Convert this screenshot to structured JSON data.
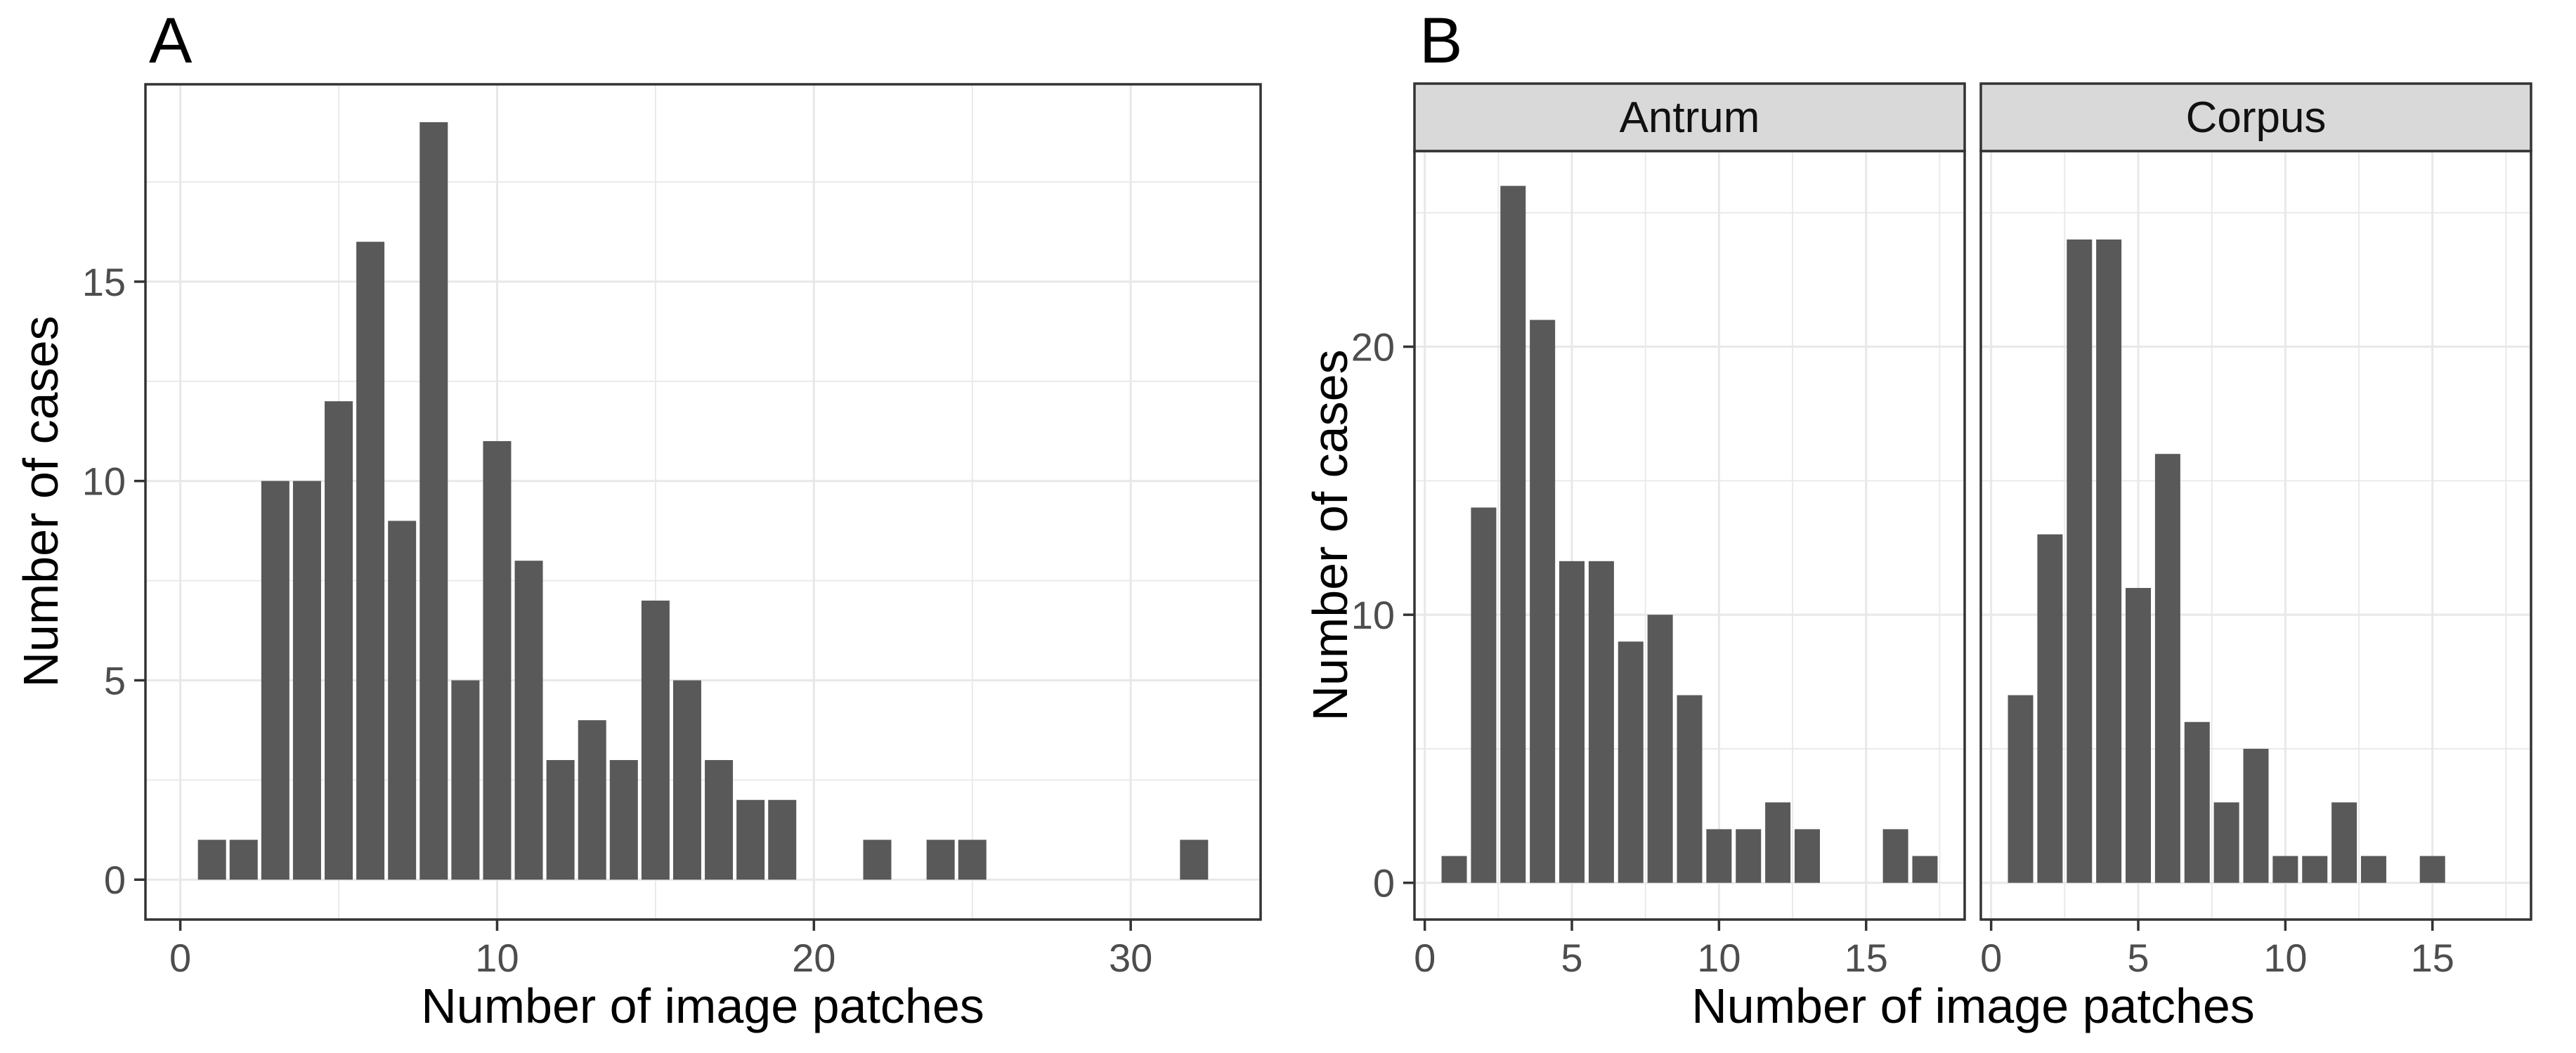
{
  "figure": {
    "panels": {
      "a_tag": "A",
      "b_tag": "B"
    },
    "facets": [
      "Antrum",
      "Corpus"
    ],
    "colors": {
      "bar": "#595959",
      "grid": "#e8e8e8",
      "panel_border": "#333333",
      "strip_fill": "#d9d9d9",
      "axis_text": "#4d4d4d",
      "tick": "#333333",
      "title_text": "#000000",
      "background": "#ffffff"
    }
  },
  "chart_data": [
    {
      "type": "bar",
      "panel": "A",
      "title": "",
      "xlabel": "Number of image patches",
      "ylabel": "Number of cases",
      "x": [
        1,
        2,
        3,
        4,
        5,
        6,
        7,
        8,
        9,
        10,
        11,
        12,
        13,
        14,
        15,
        16,
        17,
        18,
        19,
        22,
        24,
        25,
        32
      ],
      "values": [
        1,
        1,
        10,
        10,
        12,
        16,
        9,
        19,
        5,
        11,
        8,
        3,
        4,
        3,
        7,
        5,
        3,
        2,
        2,
        1,
        1,
        1,
        1
      ],
      "x_ticks": [
        0,
        10,
        20,
        30
      ],
      "y_ticks": [
        0,
        5,
        10,
        15
      ],
      "x_minor": [
        5,
        15,
        25
      ],
      "y_minor": [
        2.5,
        7.5,
        12.5,
        17.5
      ],
      "xlim": [
        -1.1,
        34.1
      ],
      "ylim": [
        -1.0,
        19.95
      ],
      "grid": true,
      "legend": "none"
    },
    {
      "type": "bar",
      "panel": "B",
      "facet": "Antrum",
      "title": "",
      "xlabel": "Number of image patches",
      "ylabel": "Number of cases",
      "x": [
        1,
        2,
        3,
        4,
        5,
        6,
        7,
        8,
        9,
        10,
        11,
        12,
        13,
        16,
        17
      ],
      "values": [
        1,
        14,
        26,
        21,
        12,
        12,
        9,
        10,
        7,
        2,
        2,
        3,
        2,
        2,
        1
      ],
      "x_ticks": [
        0,
        5,
        10,
        15
      ],
      "y_ticks": [
        0,
        10,
        20
      ],
      "x_minor": [
        2.5,
        7.5,
        12.5,
        17.5
      ],
      "y_minor": [
        5,
        15,
        25
      ],
      "xlim": [
        -0.35,
        18.35
      ],
      "ylim": [
        -1.37,
        27.3
      ],
      "grid": true,
      "legend": "none"
    },
    {
      "type": "bar",
      "panel": "B",
      "facet": "Corpus",
      "title": "",
      "xlabel": "Number of image patches",
      "ylabel": "Number of cases",
      "x": [
        1,
        2,
        3,
        4,
        5,
        6,
        7,
        8,
        9,
        10,
        11,
        12,
        13,
        15
      ],
      "values": [
        7,
        13,
        24,
        24,
        11,
        16,
        6,
        3,
        5,
        1,
        1,
        3,
        1,
        1
      ],
      "x_ticks": [
        0,
        5,
        10,
        15
      ],
      "x_minor": [
        2.5,
        7.5,
        12.5,
        17.5
      ],
      "y_ticks": [
        0,
        10,
        20
      ],
      "y_minor": [
        5,
        15,
        25
      ],
      "xlim": [
        -0.35,
        18.35
      ],
      "ylim": [
        -1.37,
        27.3
      ],
      "grid": true,
      "legend": "none"
    }
  ]
}
